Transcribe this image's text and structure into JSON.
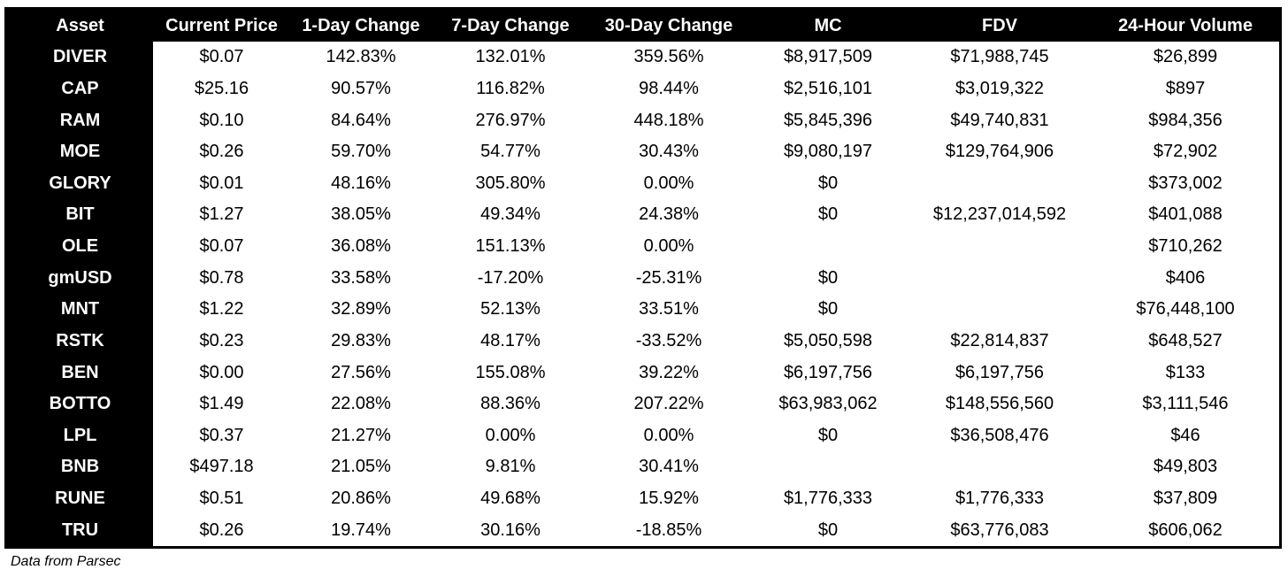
{
  "chart_data": {
    "type": "table",
    "columns": [
      "Asset",
      "Current Price",
      "1-Day Change",
      "7-Day Change",
      "30-Day Change",
      "MC",
      "FDV",
      "24-Hour Volume"
    ],
    "rows": [
      [
        "DIVER",
        "$0.07",
        "142.83%",
        "132.01%",
        "359.56%",
        "$8,917,509",
        "$71,988,745",
        "$26,899"
      ],
      [
        "CAP",
        "$25.16",
        "90.57%",
        "116.82%",
        "98.44%",
        "$2,516,101",
        "$3,019,322",
        "$897"
      ],
      [
        "RAM",
        "$0.10",
        "84.64%",
        "276.97%",
        "448.18%",
        "$5,845,396",
        "$49,740,831",
        "$984,356"
      ],
      [
        "MOE",
        "$0.26",
        "59.70%",
        "54.77%",
        "30.43%",
        "$9,080,197",
        "$129,764,906",
        "$72,902"
      ],
      [
        "GLORY",
        "$0.01",
        "48.16%",
        "305.80%",
        "0.00%",
        "$0",
        "",
        "$373,002"
      ],
      [
        "BIT",
        "$1.27",
        "38.05%",
        "49.34%",
        "24.38%",
        "$0",
        "$12,237,014,592",
        "$401,088"
      ],
      [
        "OLE",
        "$0.07",
        "36.08%",
        "151.13%",
        "0.00%",
        "",
        "",
        "$710,262"
      ],
      [
        "gmUSD",
        "$0.78",
        "33.58%",
        "-17.20%",
        "-25.31%",
        "$0",
        "",
        "$406"
      ],
      [
        "MNT",
        "$1.22",
        "32.89%",
        "52.13%",
        "33.51%",
        "$0",
        "",
        "$76,448,100"
      ],
      [
        "RSTK",
        "$0.23",
        "29.83%",
        "48.17%",
        "-33.52%",
        "$5,050,598",
        "$22,814,837",
        "$648,527"
      ],
      [
        "BEN",
        "$0.00",
        "27.56%",
        "155.08%",
        "39.22%",
        "$6,197,756",
        "$6,197,756",
        "$133"
      ],
      [
        "BOTTO",
        "$1.49",
        "22.08%",
        "88.36%",
        "207.22%",
        "$63,983,062",
        "$148,556,560",
        "$3,111,546"
      ],
      [
        "LPL",
        "$0.37",
        "21.27%",
        "0.00%",
        "0.00%",
        "$0",
        "$36,508,476",
        "$46"
      ],
      [
        "BNB",
        "$497.18",
        "21.05%",
        "9.81%",
        "30.41%",
        "",
        "",
        "$49,803"
      ],
      [
        "RUNE",
        "$0.51",
        "20.86%",
        "49.68%",
        "15.92%",
        "$1,776,333",
        "$1,776,333",
        "$37,809"
      ],
      [
        "TRU",
        "$0.26",
        "19.74%",
        "30.16%",
        "-18.85%",
        "$0",
        "$63,776,083",
        "$606,062"
      ]
    ]
  },
  "footer": {
    "source": "Data from Parsec"
  },
  "colors": {
    "frame": "#000000",
    "header_text": "#ffffff",
    "cell_bg": "#ffffff",
    "cell_text": "#000000"
  }
}
